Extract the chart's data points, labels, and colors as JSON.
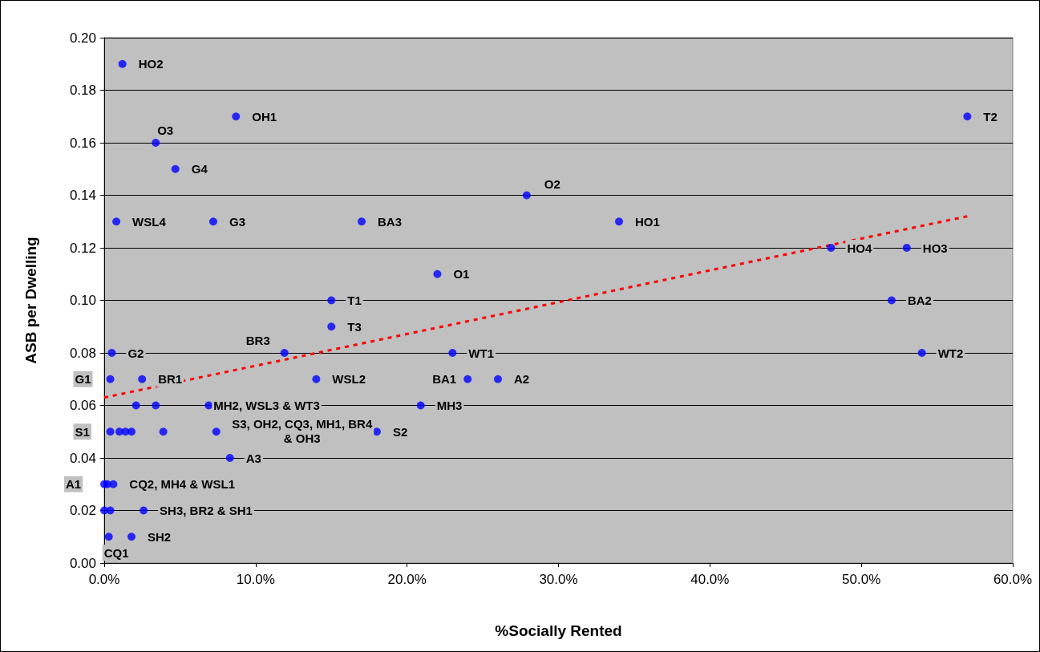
{
  "chart_data": {
    "type": "scatter",
    "xlabel": "%Socially Rented",
    "ylabel": "ASB per Dwelling",
    "xlim": [
      0,
      60
    ],
    "ylim": [
      0,
      0.2
    ],
    "xticks": [
      {
        "value": 0,
        "label": "0.0%"
      },
      {
        "value": 10,
        "label": "10.0%"
      },
      {
        "value": 20,
        "label": "20.0%"
      },
      {
        "value": 30,
        "label": "30.0%"
      },
      {
        "value": 40,
        "label": "40.0%"
      },
      {
        "value": 50,
        "label": "50.0%"
      },
      {
        "value": 60,
        "label": "60.0%"
      }
    ],
    "yticks": [
      {
        "value": 0,
        "label": "0.00"
      },
      {
        "value": 0.02,
        "label": "0.02"
      },
      {
        "value": 0.04,
        "label": "0.04"
      },
      {
        "value": 0.06,
        "label": "0.06"
      },
      {
        "value": 0.08,
        "label": "0.08"
      },
      {
        "value": 0.1,
        "label": "0.10"
      },
      {
        "value": 0.12,
        "label": "0.12"
      },
      {
        "value": 0.14,
        "label": "0.14"
      },
      {
        "value": 0.16,
        "label": "0.16"
      },
      {
        "value": 0.18,
        "label": "0.18"
      },
      {
        "value": 0.2,
        "label": "0.20"
      }
    ],
    "grid": "y",
    "marker": "circle",
    "series": [
      {
        "type": "scatter",
        "color": "#0000ff",
        "x": [
          1.2,
          3.4,
          4.7,
          8.7,
          0.8,
          7.2,
          17.0,
          22.0,
          15.0,
          15.0,
          11.9,
          27.9,
          34.0,
          57.0,
          48.0,
          53.0,
          52.0,
          54.0,
          23.0,
          24.0,
          26.0,
          20.9,
          18.0,
          14.0,
          0.5,
          0.4,
          2.5,
          2.1,
          3.4,
          6.9,
          0.4,
          1.0,
          1.4,
          1.8,
          3.9,
          7.4,
          8.3,
          0.0,
          0.2,
          0.6,
          0.0,
          0.4,
          2.6,
          0.3,
          1.8
        ],
        "values": [
          0.19,
          0.16,
          0.15,
          0.17,
          0.13,
          0.13,
          0.13,
          0.11,
          0.1,
          0.09,
          0.08,
          0.14,
          0.13,
          0.17,
          0.12,
          0.12,
          0.1,
          0.08,
          0.08,
          0.07,
          0.07,
          0.06,
          0.05,
          0.07,
          0.08,
          0.07,
          0.07,
          0.06,
          0.06,
          0.06,
          0.05,
          0.05,
          0.05,
          0.05,
          0.05,
          0.05,
          0.04,
          0.03,
          0.03,
          0.03,
          0.02,
          0.02,
          0.02,
          0.01,
          0.01
        ]
      },
      {
        "type": "line",
        "color": "#ff0000",
        "line_style": "dashed",
        "marker": "none",
        "x": [
          0,
          57
        ],
        "values": [
          0.063,
          0.132
        ]
      }
    ],
    "annotations": [
      {
        "text": "HO2",
        "x": 1.2,
        "y": 0.19
      },
      {
        "text": "O3",
        "x": 3.4,
        "y": 0.16
      },
      {
        "text": "G4",
        "x": 4.7,
        "y": 0.15
      },
      {
        "text": "OH1",
        "x": 8.7,
        "y": 0.17
      },
      {
        "text": "WSL4",
        "x": 0.8,
        "y": 0.13
      },
      {
        "text": "G3",
        "x": 7.2,
        "y": 0.13
      },
      {
        "text": "BA3",
        "x": 17.0,
        "y": 0.13
      },
      {
        "text": "O1",
        "x": 22.0,
        "y": 0.11
      },
      {
        "text": "T1",
        "x": 15.0,
        "y": 0.1
      },
      {
        "text": "T3",
        "x": 15.0,
        "y": 0.09
      },
      {
        "text": "BR3",
        "x": 11.9,
        "y": 0.08
      },
      {
        "text": "O2",
        "x": 27.9,
        "y": 0.14
      },
      {
        "text": "HO1",
        "x": 34.0,
        "y": 0.13
      },
      {
        "text": "T2",
        "x": 57.0,
        "y": 0.17
      },
      {
        "text": "HO4",
        "x": 48.0,
        "y": 0.12
      },
      {
        "text": "HO3",
        "x": 53.0,
        "y": 0.12
      },
      {
        "text": "BA2",
        "x": 52.0,
        "y": 0.1
      },
      {
        "text": "WT2",
        "x": 54.0,
        "y": 0.08
      },
      {
        "text": "WT1",
        "x": 23.0,
        "y": 0.08
      },
      {
        "text": "BA1",
        "x": 24.0,
        "y": 0.07
      },
      {
        "text": "A2",
        "x": 26.0,
        "y": 0.07
      },
      {
        "text": "MH3",
        "x": 20.9,
        "y": 0.06
      },
      {
        "text": "S2",
        "x": 18.0,
        "y": 0.05
      },
      {
        "text": "WSL2",
        "x": 14.0,
        "y": 0.07
      },
      {
        "text": "G2",
        "x": 0.5,
        "y": 0.08
      },
      {
        "text": "G1",
        "x": 0.4,
        "y": 0.07
      },
      {
        "text": "BR1",
        "x": 2.5,
        "y": 0.07
      },
      {
        "text": "MH2, WSL3 & WT3",
        "x": 6.9,
        "y": 0.06
      },
      {
        "text": "S1",
        "x": 0.4,
        "y": 0.05
      },
      {
        "text": "S3, OH2, CQ3, MH1, BR4\n& OH3",
        "x": 7.4,
        "y": 0.05
      },
      {
        "text": "A3",
        "x": 8.3,
        "y": 0.04
      },
      {
        "text": "A1",
        "x": 0.0,
        "y": 0.03
      },
      {
        "text": "CQ2, MH4 & WSL1",
        "x": 0.6,
        "y": 0.03
      },
      {
        "text": "SH3, BR2 & SH1",
        "x": 2.6,
        "y": 0.02
      },
      {
        "text": "CQ1",
        "x": 0.3,
        "y": 0.01
      },
      {
        "text": "SH2",
        "x": 1.8,
        "y": 0.01
      }
    ]
  }
}
